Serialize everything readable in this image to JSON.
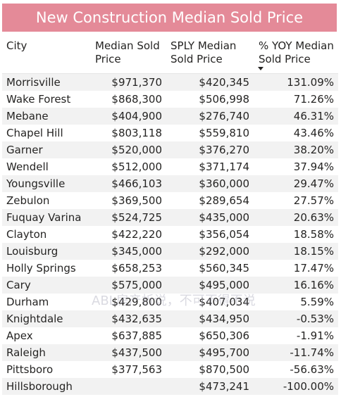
{
  "title": "New Construction Median Sold Price",
  "colors": {
    "title_bg": "#e48a98",
    "stripe": "#f2f2f2"
  },
  "headers": {
    "city": "City",
    "median_line1": "Median Sold",
    "median_line2": "Price",
    "sply_line1": "SPLY Median",
    "sply_line2": "Sold Price",
    "yoy_line1": "% YOY Median",
    "yoy_line2": "Sold Price"
  },
  "sort_icon": "caret-down-icon",
  "rows": [
    {
      "city": "Morrisville",
      "median": "$971,370",
      "sply": "$420,345",
      "yoy": "131.09%"
    },
    {
      "city": "Wake Forest",
      "median": "$868,300",
      "sply": "$506,998",
      "yoy": "71.26%"
    },
    {
      "city": "Mebane",
      "median": "$404,900",
      "sply": "$276,740",
      "yoy": "46.31%"
    },
    {
      "city": "Chapel Hill",
      "median": "$803,118",
      "sply": "$559,810",
      "yoy": "43.46%"
    },
    {
      "city": "Garner",
      "median": "$520,000",
      "sply": "$376,270",
      "yoy": "38.20%"
    },
    {
      "city": "Wendell",
      "median": "$512,000",
      "sply": "$371,174",
      "yoy": "37.94%"
    },
    {
      "city": "Youngsville",
      "median": "$466,103",
      "sply": "$360,000",
      "yoy": "29.47%"
    },
    {
      "city": "Zebulon",
      "median": "$369,500",
      "sply": "$289,654",
      "yoy": "27.57%"
    },
    {
      "city": "Fuquay Varina",
      "median": "$524,725",
      "sply": "$435,000",
      "yoy": "20.63%"
    },
    {
      "city": "Clayton",
      "median": "$422,220",
      "sply": "$356,054",
      "yoy": "18.58%"
    },
    {
      "city": "Louisburg",
      "median": "$345,000",
      "sply": "$292,000",
      "yoy": "18.15%"
    },
    {
      "city": "Holly Springs",
      "median": "$658,253",
      "sply": "$560,345",
      "yoy": "17.47%"
    },
    {
      "city": "Cary",
      "median": "$575,000",
      "sply": "$495,000",
      "yoy": "16.16%"
    },
    {
      "city": "Durham",
      "median": "$429,800",
      "sply": "$407,034",
      "yoy": "5.59%"
    },
    {
      "city": "Knightdale",
      "median": "$432,635",
      "sply": "$434,950",
      "yoy": "-0.53%"
    },
    {
      "city": "Apex",
      "median": "$637,885",
      "sply": "$650,306",
      "yoy": "-1.91%"
    },
    {
      "city": "Raleigh",
      "median": "$437,500",
      "sply": "$495,700",
      "yoy": "-11.74%"
    },
    {
      "city": "Pittsboro",
      "median": "$377,563",
      "sply": "$870,500",
      "yoy": "-56.63%"
    },
    {
      "city": "Hillsborough",
      "median": "",
      "sply": "$473,241",
      "yoy": "-100.00%"
    }
  ],
  "watermark": "ABL房产析说，不可不得不说"
}
